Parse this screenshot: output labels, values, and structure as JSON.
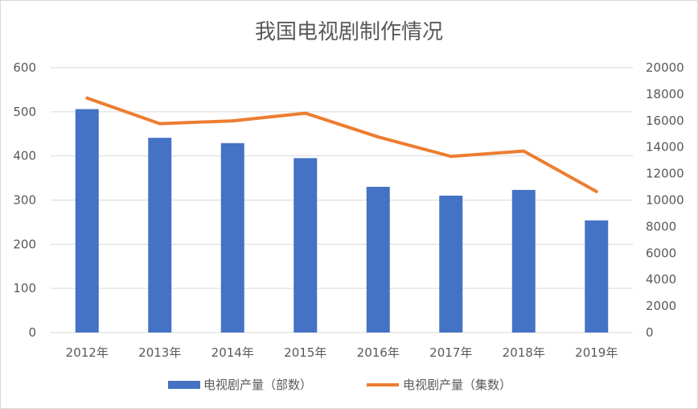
{
  "chart_data": {
    "type": "bar",
    "title": "我国电视剧制作情况",
    "categories": [
      "2012年",
      "2013年",
      "2014年",
      "2015年",
      "2016年",
      "2017年",
      "2018年",
      "2019年"
    ],
    "y_left": {
      "ylim": [
        0,
        600
      ],
      "ticks": [
        "0",
        "100",
        "200",
        "300",
        "400",
        "500",
        "600"
      ]
    },
    "y_right": {
      "ylim": [
        0,
        20000
      ],
      "ticks": [
        "0",
        "2000",
        "4000",
        "6000",
        "8000",
        "10000",
        "12000",
        "14000",
        "16000",
        "18000",
        "20000"
      ]
    },
    "series": [
      {
        "name": "电视剧产量（部数）",
        "type": "bar",
        "axis": "left",
        "color": "#4472c4",
        "values": [
          506,
          441,
          429,
          395,
          330,
          310,
          323,
          254
        ]
      },
      {
        "name": "电视剧产量（集数）",
        "type": "line",
        "axis": "right",
        "color": "#ed7d31",
        "values": [
          17703,
          15770,
          15983,
          16560,
          14768,
          13300,
          13700,
          10646
        ]
      }
    ],
    "grid": true,
    "legend_position": "bottom"
  }
}
